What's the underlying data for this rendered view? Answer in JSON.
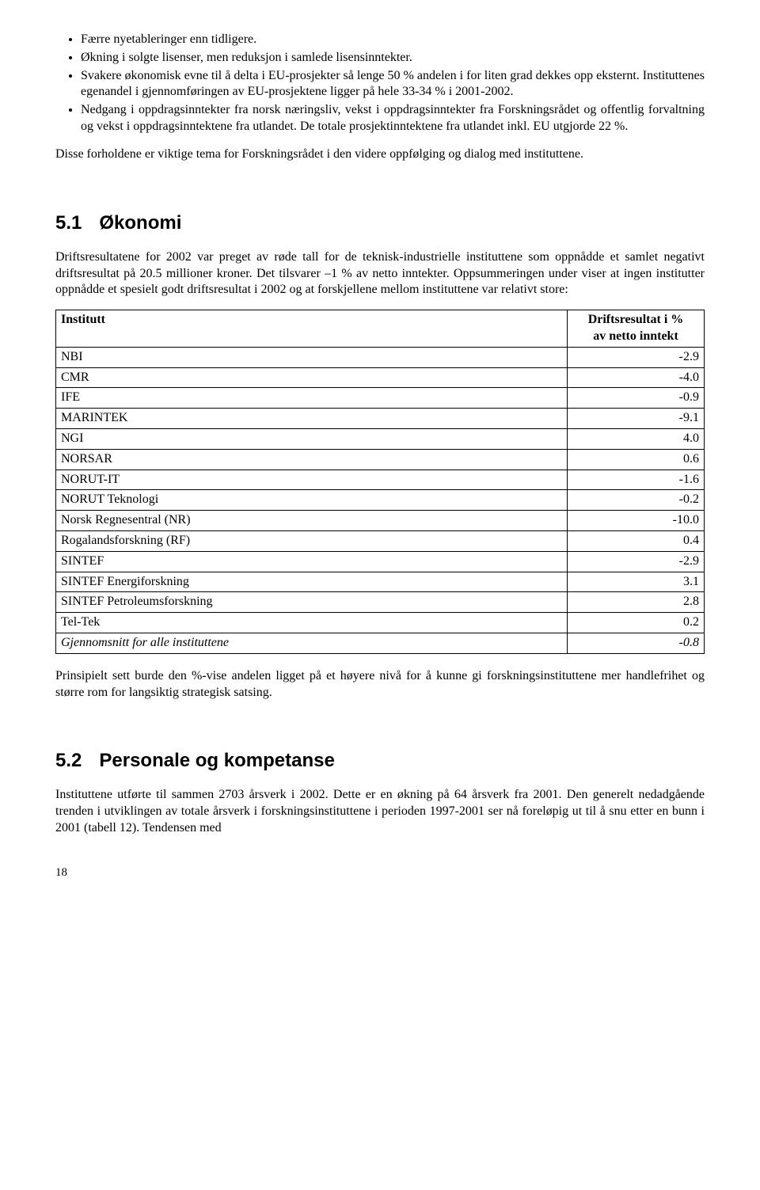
{
  "bullets": [
    "Færre nyetableringer enn tidligere.",
    "Økning i solgte lisenser, men reduksjon i samlede lisensinntekter.",
    "Svakere økonomisk evne til å delta i EU-prosjekter så lenge 50 % andelen i for liten grad dekkes opp eksternt. Instituttenes egenandel i gjennomføringen av EU-prosjektene ligger på hele 33-34 % i 2001-2002.",
    "Nedgang i oppdragsinntekter fra norsk næringsliv, vekst i oppdragsinntekter fra Forskningsrådet og offentlig forvaltning og vekst i oppdragsinntektene fra utlandet. De totale prosjektinntektene fra utlandet inkl. EU utgjorde 22 %."
  ],
  "para_after_bullets": "Disse forholdene er viktige tema for Forskningsrådet i den videre oppfølging og dialog med instituttene.",
  "section51": {
    "num": "5.1",
    "title": "Økonomi",
    "para": "Driftsresultatene for 2002 var preget av røde tall for de teknisk-industrielle instituttene som oppnådde et samlet negativt driftsresultat på 20.5 millioner kroner. Det tilsvarer –1 % av netto inntekter. Oppsummeringen under viser at ingen institutter oppnådde et spesielt godt driftsresultat i 2002 og at forskjellene mellom instituttene var relativt store:"
  },
  "table": {
    "col1_header": "Institutt",
    "col2_header_line1": "Driftsresultat i %",
    "col2_header_line2": "av netto inntekt",
    "rows": [
      {
        "name": "NBI",
        "value": "-2.9"
      },
      {
        "name": "CMR",
        "value": "-4.0"
      },
      {
        "name": "IFE",
        "value": "-0.9"
      },
      {
        "name": "MARINTEK",
        "value": "-9.1"
      },
      {
        "name": "NGI",
        "value": "4.0"
      },
      {
        "name": "NORSAR",
        "value": "0.6"
      },
      {
        "name": "NORUT-IT",
        "value": "-1.6"
      },
      {
        "name": "NORUT Teknologi",
        "value": "-0.2"
      },
      {
        "name": "Norsk Regnesentral (NR)",
        "value": "-10.0"
      },
      {
        "name": "Rogalandsforskning (RF)",
        "value": "0.4"
      },
      {
        "name": "SINTEF",
        "value": "-2.9"
      },
      {
        "name": "SINTEF Energiforskning",
        "value": "3.1"
      },
      {
        "name": "SINTEF Petroleumsforskning",
        "value": "2.8"
      },
      {
        "name": "Tel-Tek",
        "value": "0.2"
      }
    ],
    "total_row": {
      "name": "Gjennomsnitt for alle instituttene",
      "value": "-0.8"
    }
  },
  "para_after_table": "Prinsipielt sett burde den %-vise andelen ligget på et høyere nivå for å kunne gi forskningsinstituttene mer handlefrihet og større rom for langsiktig strategisk satsing.",
  "section52": {
    "num": "5.2",
    "title": "Personale og kompetanse",
    "para": "Instituttene utførte til sammen 2703 årsverk i 2002. Dette er en økning på 64 årsverk fra 2001. Den generelt nedadgående trenden i utviklingen av totale årsverk i forskningsinstituttene i perioden 1997-2001 ser nå foreløpig ut til å snu etter en bunn i 2001 (tabell 12). Tendensen med"
  },
  "page_number": "18"
}
